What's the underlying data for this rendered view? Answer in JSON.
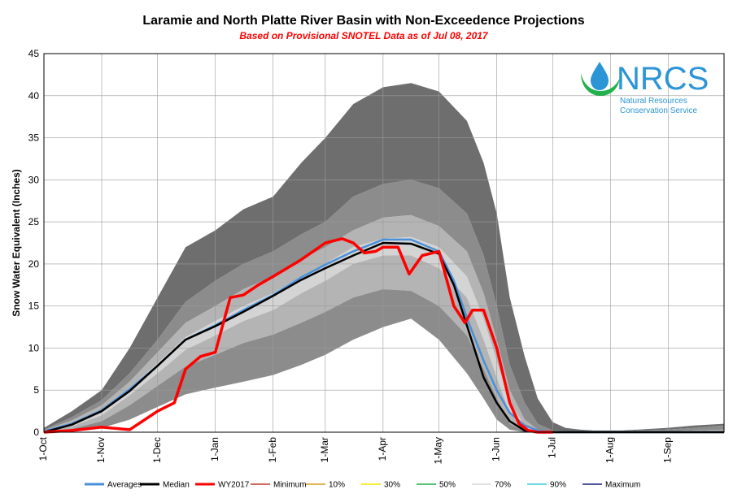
{
  "chart_data": {
    "type": "area",
    "title": "Laramie and North Platte River Basin with Non-Exceedence Projections",
    "subtitle": "Based on Provisional SNOTEL Data as of Jul 08, 2017",
    "ylabel": "Snow Water Equivalent (Inches)",
    "xlabel": "",
    "ylim": [
      0,
      45
    ],
    "y_ticks": [
      "0",
      "5",
      "10",
      "15",
      "20",
      "25",
      "30",
      "35",
      "40",
      "45"
    ],
    "x_ticks": [
      "1-Oct",
      "1-Nov",
      "1-Dec",
      "1-Jan",
      "1-Feb",
      "1-Mar",
      "1-Apr",
      "1-May",
      "1-Jun",
      "1-Jul",
      "1-Aug",
      "1-Sep"
    ],
    "grid": true,
    "legend_position": "bottom",
    "x_days": [
      0,
      15,
      31,
      46,
      61,
      76,
      92,
      107,
      123,
      138,
      151,
      166,
      182,
      197,
      212,
      227,
      236,
      243,
      250,
      258,
      265,
      273,
      280,
      288,
      295,
      303,
      310,
      318,
      334,
      349,
      365
    ],
    "bands": {
      "max": [
        0.5,
        2.5,
        5,
        10,
        16,
        22,
        24,
        26.5,
        28,
        32,
        35,
        39,
        41,
        41.5,
        40.5,
        37,
        32,
        26,
        16,
        9,
        4,
        1.2,
        0.5,
        0.3,
        0.2,
        0.2,
        0.2,
        0.3,
        0.5,
        0.8,
        1
      ],
      "p90": [
        0.3,
        1.8,
        3.8,
        7,
        11,
        15.5,
        18,
        20,
        21.5,
        23.5,
        25,
        28,
        29.5,
        30,
        29,
        26,
        21,
        15,
        8,
        3.5,
        1,
        0.2,
        0.1,
        0.1,
        0.1,
        0.1,
        0.1,
        0.2,
        0.3,
        0.5,
        0.8
      ],
      "p70": [
        0.2,
        1.4,
        3.2,
        6,
        9.5,
        13,
        15,
        17,
        18.5,
        20.5,
        22,
        24,
        25.5,
        25.8,
        24.5,
        21.5,
        16.5,
        11,
        5,
        1.5,
        0.3,
        0.1,
        0,
        0,
        0,
        0,
        0,
        0,
        0.1,
        0.2,
        0.3
      ],
      "p50": [
        0.1,
        1,
        2.6,
        5.2,
        8.2,
        11.3,
        13.2,
        15,
        16.5,
        18.5,
        20,
        22,
        23,
        23.2,
        22,
        18.5,
        13.5,
        8.5,
        3.5,
        0.8,
        0.1,
        0,
        0,
        0,
        0,
        0,
        0,
        0,
        0,
        0,
        0
      ],
      "p30": [
        0.05,
        0.7,
        2,
        4.4,
        7,
        9.8,
        11.5,
        13.2,
        14.5,
        16.5,
        18,
        20,
        21,
        21,
        19.5,
        16,
        11,
        6.5,
        2.2,
        0.4,
        0,
        0,
        0,
        0,
        0,
        0,
        0,
        0,
        0,
        0,
        0
      ],
      "p10": [
        0,
        0.4,
        1.3,
        3.2,
        5.5,
        7.8,
        9.2,
        10.6,
        11.6,
        13,
        14.3,
        16,
        17,
        16.8,
        15,
        11.5,
        7.5,
        4,
        1,
        0.1,
        0,
        0,
        0,
        0,
        0,
        0,
        0,
        0,
        0,
        0,
        0
      ],
      "min": [
        0,
        0.1,
        0.5,
        1.5,
        3,
        4.5,
        5.3,
        6,
        6.8,
        8,
        9.2,
        11,
        12.5,
        13.5,
        11,
        7,
        4,
        1.5,
        0.3,
        0,
        0,
        0,
        0,
        0,
        0,
        0,
        0,
        0,
        0,
        0,
        0
      ]
    },
    "series": [
      {
        "name": "Averages",
        "color": "#4a90d9",
        "x": [
          0,
          15,
          31,
          46,
          61,
          76,
          92,
          107,
          123,
          138,
          151,
          166,
          182,
          197,
          212,
          220,
          228,
          236,
          243,
          250,
          258,
          265,
          273,
          280,
          288,
          295,
          303,
          318,
          334,
          349,
          365
        ],
        "values": [
          0.1,
          1,
          2.6,
          5.1,
          7.9,
          11,
          12.7,
          14.5,
          16.3,
          18.4,
          19.9,
          21.5,
          22.9,
          22.9,
          21.5,
          18,
          13,
          8.5,
          5,
          2.3,
          0.8,
          0.2,
          0,
          0,
          0,
          0,
          0,
          0,
          0,
          0,
          0
        ]
      },
      {
        "name": "Median",
        "color": "#000000",
        "x": [
          0,
          15,
          31,
          46,
          61,
          76,
          92,
          107,
          123,
          138,
          151,
          166,
          182,
          197,
          212,
          220,
          228,
          236,
          243,
          250,
          258,
          265,
          273,
          280,
          288,
          295,
          303,
          318,
          334,
          349,
          365
        ],
        "values": [
          0,
          0.9,
          2.5,
          4.9,
          7.9,
          11,
          12.6,
          14.3,
          16.2,
          18.1,
          19.5,
          21,
          22.5,
          22.4,
          21.2,
          17.5,
          12,
          6.5,
          3.5,
          1.3,
          0.2,
          0,
          0,
          0,
          0,
          0,
          0,
          0,
          0,
          0,
          0
        ]
      },
      {
        "name": "WY2017",
        "color": "#ff0000",
        "x": [
          0,
          15,
          31,
          46,
          61,
          70,
          76,
          84,
          92,
          100,
          107,
          115,
          123,
          138,
          151,
          160,
          166,
          172,
          178,
          182,
          190,
          196,
          203,
          212,
          220,
          226,
          230,
          236,
          243,
          250,
          255,
          260,
          265,
          273
        ],
        "values": [
          0,
          0.2,
          0.6,
          0.3,
          2.5,
          3.5,
          7.5,
          9,
          9.5,
          16,
          16.3,
          17.5,
          18.5,
          20.5,
          22.5,
          23,
          22.5,
          21.3,
          21.5,
          22,
          22,
          18.8,
          21,
          21.5,
          15,
          13,
          14.5,
          14.5,
          10,
          3.5,
          1,
          0.2,
          0,
          0
        ]
      }
    ],
    "legend": [
      {
        "name": "Averages",
        "color": "#4a90d9"
      },
      {
        "name": "Median",
        "color": "#000000"
      },
      {
        "name": "WY2017",
        "color": "#ff0000"
      },
      {
        "name": "Minimum",
        "color": "#c0392b"
      },
      {
        "name": "10%",
        "color": "#d4a017"
      },
      {
        "name": "30%",
        "color": "#f2e600"
      },
      {
        "name": "50%",
        "color": "#22b14c"
      },
      {
        "name": "70%",
        "color": "#d9d9d9"
      },
      {
        "name": "90%",
        "color": "#3cc8d8"
      },
      {
        "name": "Maximum",
        "color": "#1f1f7a"
      }
    ]
  },
  "logo": {
    "acronym": "NRCS",
    "line1": "Natural Resources",
    "line2": "Conservation Service"
  },
  "colors": {
    "band_outer": "#6e6e6e",
    "band_90": "#8c8c8c",
    "band_70": "#b4b4b4",
    "band_50": "#d4d4d4",
    "band_30": "#b4b4b4",
    "band_10": "#8c8c8c",
    "band_min": "#6e6e6e",
    "logo_blue": "#2b95d6",
    "logo_green": "#22b14c"
  }
}
